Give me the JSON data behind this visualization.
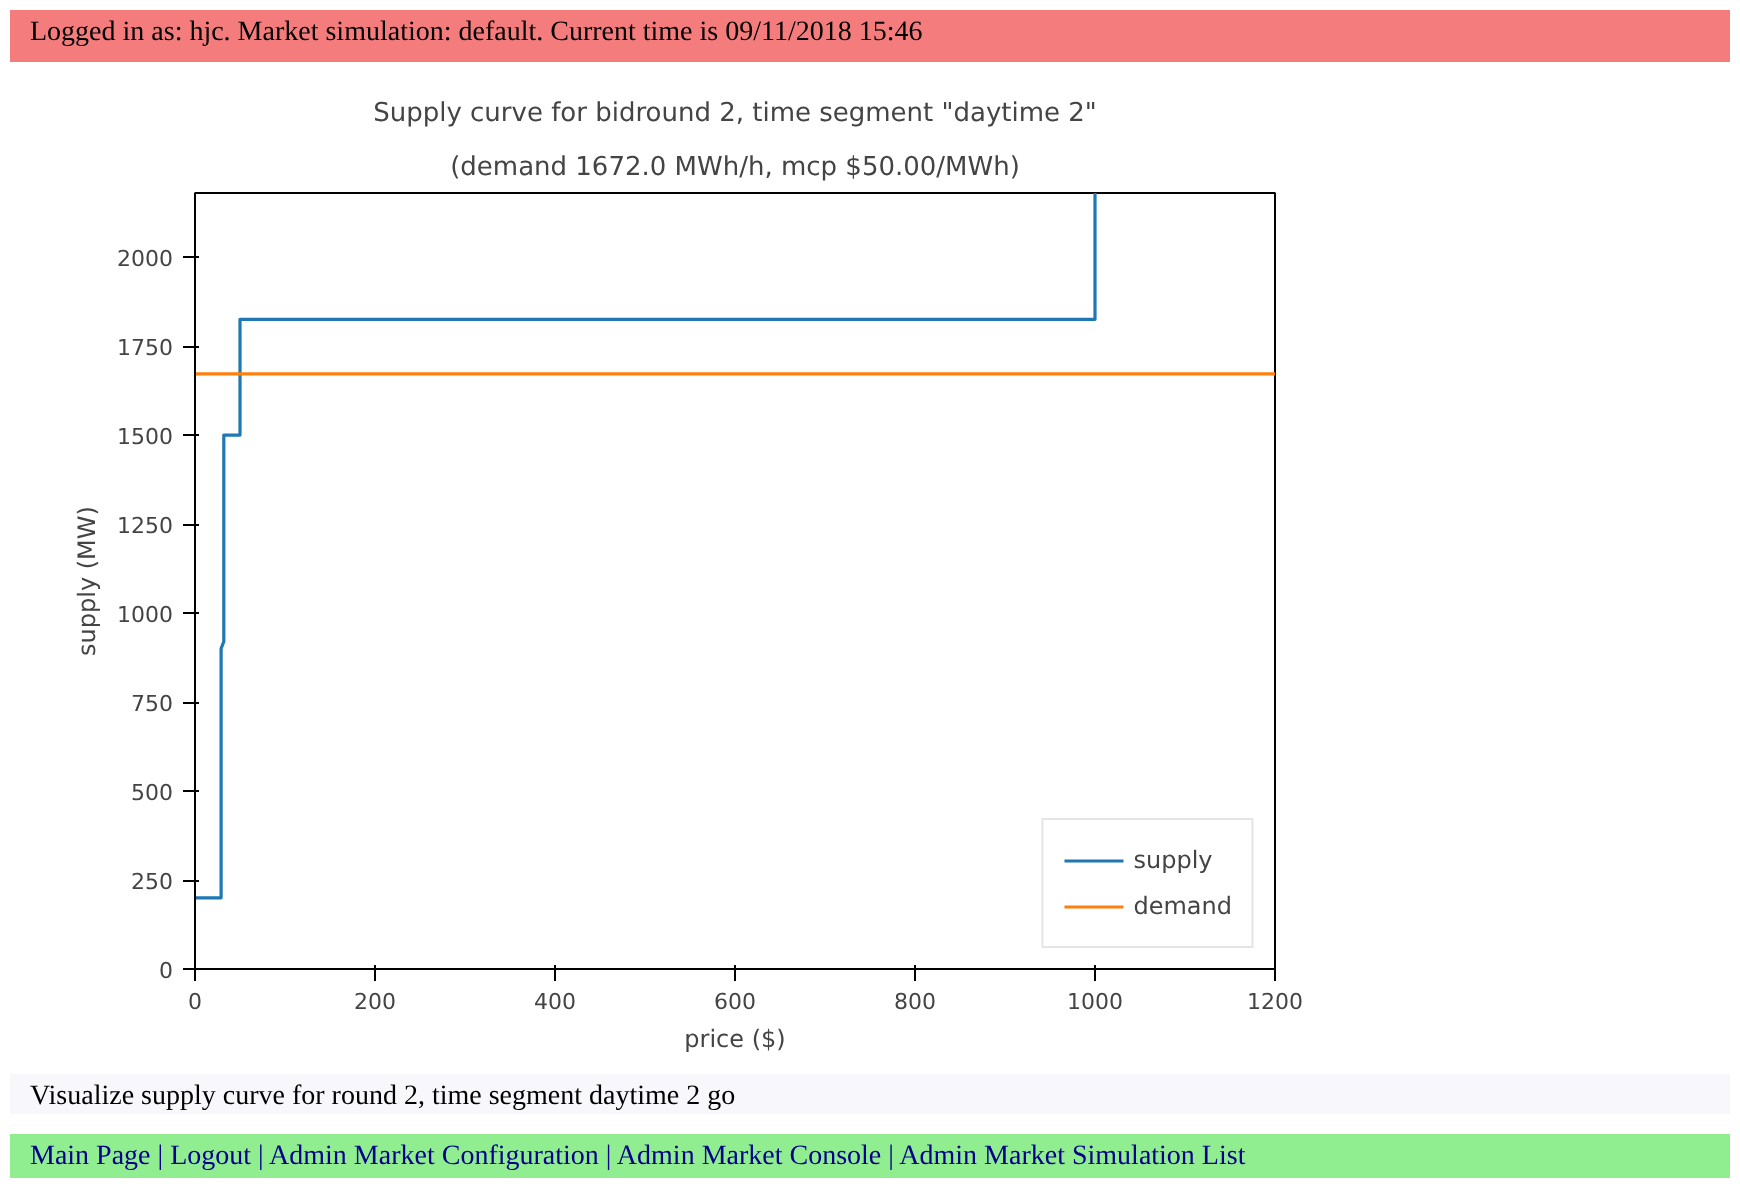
{
  "chart_data": {
    "type": "line",
    "title": "Supply curve for bidround 2, time segment \"daytime 2\"",
    "subtitle": "(demand 1672.0 MWh/h, mcp $50.00/MWh)",
    "xlabel": "price ($)",
    "ylabel": "supply (MW)",
    "series": [
      {
        "name": "supply",
        "color": "#1f77b4",
        "x": [
          0,
          29,
          29,
          32,
          32,
          50,
          50,
          1000,
          1000
        ],
        "values": [
          200,
          200,
          900,
          920,
          1500,
          1500,
          1825,
          1825,
          2180
        ]
      },
      {
        "name": "demand",
        "color": "#ff7f0e",
        "x": [
          0,
          1200
        ],
        "values": [
          1672,
          1672
        ]
      }
    ],
    "xlim": [
      0,
      1200
    ],
    "ylim": [
      0,
      2180
    ],
    "xticks": [
      0,
      200,
      400,
      600,
      800,
      1000,
      1200
    ],
    "yticks": [
      0,
      250,
      500,
      750,
      1000,
      1250,
      1500,
      1750,
      2000
    ],
    "grid": false,
    "legend": "bottom right",
    "marker": "none",
    "line_style": "solid",
    "annotations": [
      "Logged in as: hjc. Market simulation: default. Current time is 09/11/2018 15:46",
      "Visualize supply curve for round 2, time segment daytime 2 go",
      "Main Page | Logout | Admin Market Configuration | Admin Market Console | Admin Market Simulation List"
    ]
  }
}
